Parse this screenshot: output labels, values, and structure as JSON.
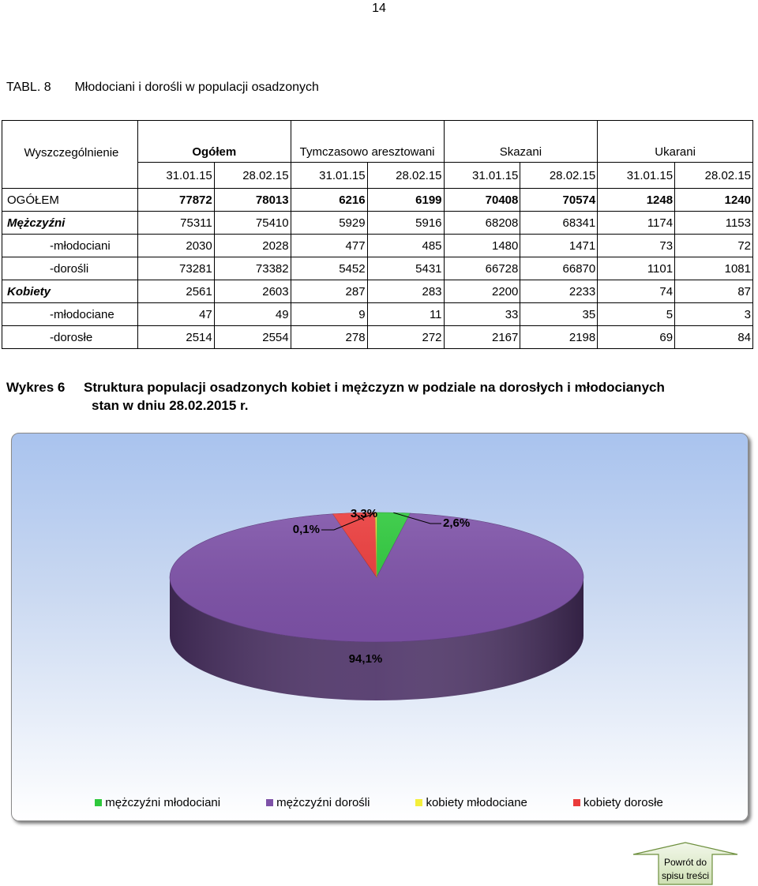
{
  "page_number": "14",
  "table": {
    "caption_number": "TABL. 8",
    "caption_title": "Młodociani i dorośli w populacji osadzonych",
    "stub_header": "Wyszczególnienie",
    "groups": [
      "Ogółem",
      "Tymczasowo aresztowani",
      "Skazani",
      "Ukarani"
    ],
    "dates": [
      "31.01.15",
      "28.02.15",
      "31.01.15",
      "28.02.15",
      "31.01.15",
      "28.02.15",
      "31.01.15",
      "28.02.15"
    ],
    "rows": [
      {
        "label": "OGÓŁEM",
        "values": [
          "77872",
          "78013",
          "6216",
          "6199",
          "70408",
          "70574",
          "1248",
          "1240"
        ]
      },
      {
        "label": "Mężczyźni",
        "values": [
          "75311",
          "75410",
          "5929",
          "5916",
          "68208",
          "68341",
          "1174",
          "1153"
        ]
      },
      {
        "label": "-młodociani",
        "values": [
          "2030",
          "2028",
          "477",
          "485",
          "1480",
          "1471",
          "73",
          "72"
        ]
      },
      {
        "label": "-dorośli",
        "values": [
          "73281",
          "73382",
          "5452",
          "5431",
          "66728",
          "66870",
          "1101",
          "1081"
        ]
      },
      {
        "label": "Kobiety",
        "values": [
          "2561",
          "2603",
          "287",
          "283",
          "2200",
          "2233",
          "74",
          "87"
        ]
      },
      {
        "label": "-młodociane",
        "values": [
          "47",
          "49",
          "9",
          "11",
          "33",
          "35",
          "5",
          "3"
        ]
      },
      {
        "label": "-dorosłe",
        "values": [
          "2514",
          "2554",
          "278",
          "272",
          "2167",
          "2198",
          "69",
          "84"
        ]
      }
    ]
  },
  "chart": {
    "caption_number": "Wykres 6",
    "caption_line1": "Struktura populacji osadzonych kobiet i mężczyzn w podziale na dorosłych i młodocianych",
    "caption_line2": "stan w dniu 28.02.2015 r.",
    "colors": {
      "men_young": "#2ec83c",
      "men_adult": "#7e52a8",
      "women_young": "#f4ef3a",
      "women_adult": "#ea3b3b"
    }
  },
  "chart_data": {
    "type": "pie",
    "categories": [
      "mężczyźni młodociani",
      "mężczyźni dorośli",
      "kobiety młodociane",
      "kobiety dorosłe"
    ],
    "values": [
      2.6,
      94.1,
      0.1,
      3.3
    ],
    "data_labels": [
      "2,6%",
      "94,1%",
      "0,1%",
      "3,3%"
    ],
    "legend": [
      "mężczyźni młodociani",
      "mężczyźni dorośli",
      "kobiety młodociane",
      "kobiety dorosłe"
    ],
    "legend_position": "bottom",
    "three_d": true
  },
  "navigation": {
    "back_line1": "Powrót do",
    "back_line2": "spisu treści"
  }
}
